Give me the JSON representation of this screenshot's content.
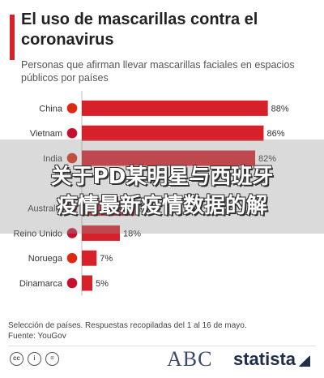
{
  "title": "El uso de mascarillas contra el coronavirus",
  "subtitle": "Personas que afirman llevar mascarillas faciales en espacios públicos por países",
  "chart_data": {
    "type": "bar",
    "orientation": "horizontal",
    "categories": [
      "China",
      "Vietnam",
      "India",
      "",
      "Australia",
      "Reino Unido",
      "Noruega",
      "Dinamarca"
    ],
    "values": [
      88,
      86,
      82,
      null,
      25,
      18,
      7,
      5
    ],
    "value_suffix": "%",
    "xlim": [
      0,
      100
    ],
    "bar_color": "#d6202a",
    "grid": false,
    "legend": "none"
  },
  "flags": [
    "china-flag-icon",
    "vietnam-flag-icon",
    "india-flag-icon",
    "",
    "australia-flag-icon",
    "uk-flag-icon",
    "norway-flag-icon",
    "denmark-flag-icon"
  ],
  "footnote": {
    "line1": "Selección de países. Respuestas recopiladas del 1 al 16 de mayo.",
    "line2": "Fuente: YouGov"
  },
  "footer": {
    "cc_icons": [
      "cc",
      "i",
      "="
    ],
    "abc_logo": "ABC",
    "statista_logo": "statista"
  },
  "overlay": {
    "line1": "关于PD某明星与西班牙",
    "line2": "疫情最新疫情数据的解"
  },
  "colors": {
    "accent": "#d6202a",
    "title": "#222222",
    "text": "#444444"
  }
}
